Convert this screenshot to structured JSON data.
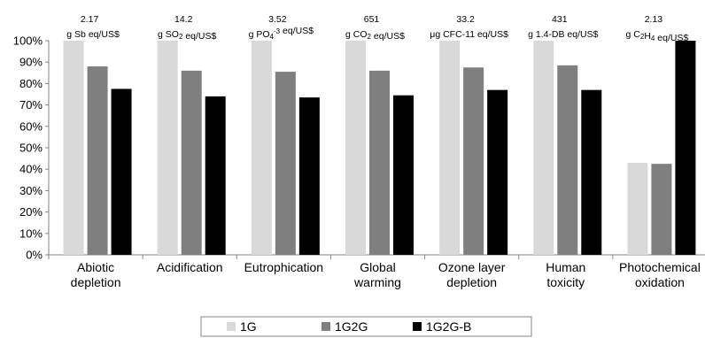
{
  "chart_data": {
    "type": "bar",
    "categories": [
      [
        "Abiotic",
        "depletion"
      ],
      [
        "Acidification"
      ],
      [
        "Eutrophication"
      ],
      [
        "Global",
        "warming"
      ],
      [
        "Ozone layer",
        "depletion"
      ],
      [
        "Human",
        "toxicity"
      ],
      [
        "Photochemical",
        "oxidation"
      ]
    ],
    "series": [
      {
        "name": "1G",
        "color": "#d9d9d9",
        "values": [
          100,
          100,
          100,
          100,
          100,
          100,
          43
        ]
      },
      {
        "name": "1G2G",
        "color": "#7f7f7f",
        "values": [
          88,
          86,
          85.5,
          86,
          87.5,
          88.5,
          42.5
        ]
      },
      {
        "name": "1G2G-B",
        "color": "#000000",
        "values": [
          77.5,
          74,
          73.5,
          74.5,
          77,
          77,
          100
        ]
      }
    ],
    "annotations": [
      {
        "value": "2.17",
        "unit": [
          {
            "t": "g Sb eq/US$"
          }
        ]
      },
      {
        "value": "14.2",
        "unit": [
          {
            "t": "g SO"
          },
          {
            "t": "2",
            "sub": true
          },
          {
            "t": " eq/US$"
          }
        ]
      },
      {
        "value": "3.52",
        "unit": [
          {
            "t": "g PO"
          },
          {
            "t": "4",
            "sub": true
          },
          {
            "t": "-3",
            "sup": true
          },
          {
            "t": " eq/US$"
          }
        ]
      },
      {
        "value": "651",
        "unit": [
          {
            "t": "g CO"
          },
          {
            "t": "2",
            "sub": true
          },
          {
            "t": " eq/US$"
          }
        ]
      },
      {
        "value": "33.2",
        "unit": [
          {
            "t": "μg CFC-11 eq/US$"
          }
        ]
      },
      {
        "value": "431",
        "unit": [
          {
            "t": "g 1.4-DB eq/US$"
          }
        ]
      },
      {
        "value": "2.13",
        "unit": [
          {
            "t": "g C"
          },
          {
            "t": "2",
            "sub": true
          },
          {
            "t": "H"
          },
          {
            "t": "4",
            "sub": true
          },
          {
            "t": " eq/US$"
          }
        ]
      }
    ],
    "ylim": [
      0,
      100
    ],
    "yticks": [
      0,
      10,
      20,
      30,
      40,
      50,
      60,
      70,
      80,
      90,
      100
    ],
    "ytick_suffix": "%",
    "legend_position": "bottom-center"
  }
}
